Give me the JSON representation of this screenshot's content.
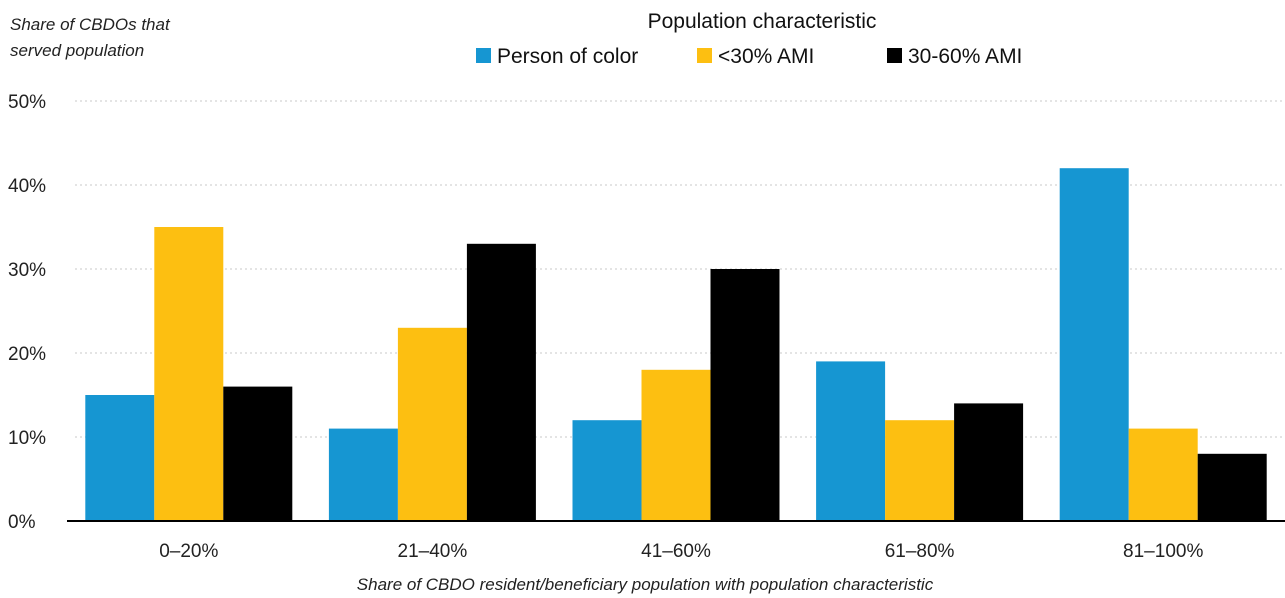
{
  "chart_data": {
    "type": "bar",
    "title": "",
    "ylabel_lines": [
      "Share of CBDOs that",
      "served population"
    ],
    "xlabel": "Share of CBDO resident/beneficiary population with population characteristic",
    "legend_title": "Population characteristic",
    "legend_placement": "top-center",
    "categories": [
      "0–20%",
      "21–40%",
      "41–60%",
      "61–80%",
      "81–100%"
    ],
    "series": [
      {
        "name": "Person of color",
        "color": "#1696d2",
        "values": [
          15,
          11,
          12,
          19,
          42
        ]
      },
      {
        "name": "<30% AMI",
        "color": "#fdbf11",
        "values": [
          35,
          23,
          18,
          12,
          11
        ]
      },
      {
        "name": "30-60% AMI",
        "color": "#000000",
        "values": [
          16,
          33,
          30,
          14,
          8
        ]
      }
    ],
    "ylim": [
      0,
      50
    ],
    "yticks": [
      0,
      10,
      20,
      30,
      40,
      50
    ],
    "ytick_labels": [
      "0%",
      "10%",
      "20%",
      "30%",
      "40%",
      "50%"
    ],
    "grid": true
  }
}
